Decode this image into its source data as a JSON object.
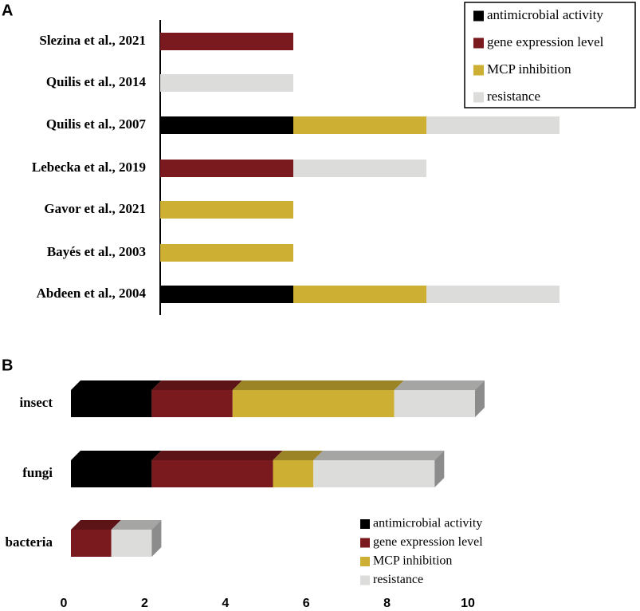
{
  "chart_data": [
    {
      "type": "stacked-bar",
      "panel_label": "A",
      "categories": [
        "Slezina et al., 2021",
        "Quilis et al., 2014",
        "Quilis et al., 2007",
        "Lebecka et al., 2019",
        "Gavor et al., 2021",
        "Bayés et al., 2003",
        "Abdeen et al., 2004"
      ],
      "series": [
        {
          "name": "antimicrobial activity",
          "color": "#000000",
          "values": [
            null,
            null,
            1,
            null,
            null,
            null,
            1
          ]
        },
        {
          "name": "gene expression level",
          "color": "#7b1a1e",
          "values": [
            1,
            null,
            null,
            1,
            null,
            null,
            null
          ]
        },
        {
          "name": "MCP  inhibition",
          "color": "#cdb033",
          "values": [
            null,
            null,
            1,
            null,
            1,
            1,
            1
          ]
        },
        {
          "name": "resistance",
          "color": "#dcdcda",
          "values": [
            null,
            1,
            1,
            1,
            null,
            null,
            1
          ]
        }
      ],
      "legend": "top-right"
    },
    {
      "type": "stacked-bar-3d",
      "panel_label": "B",
      "categories": [
        "insect",
        "fungi",
        "bacteria"
      ],
      "series": [
        {
          "name": "antimicrobial activity",
          "color": "#000000",
          "values": [
            2,
            2,
            null
          ]
        },
        {
          "name": "gene expression level",
          "color": "#7b1a1e",
          "values": [
            2,
            3,
            1
          ]
        },
        {
          "name": "MCP  inhibition",
          "color": "#cdb033",
          "values": [
            4,
            1,
            null
          ]
        },
        {
          "name": "resistance",
          "color": "#dcdcda",
          "values": [
            2,
            3,
            1
          ]
        }
      ],
      "xlim": [
        0,
        10
      ],
      "xticks": [
        0,
        2,
        4,
        6,
        8,
        10
      ],
      "legend": "bottom-right"
    }
  ]
}
